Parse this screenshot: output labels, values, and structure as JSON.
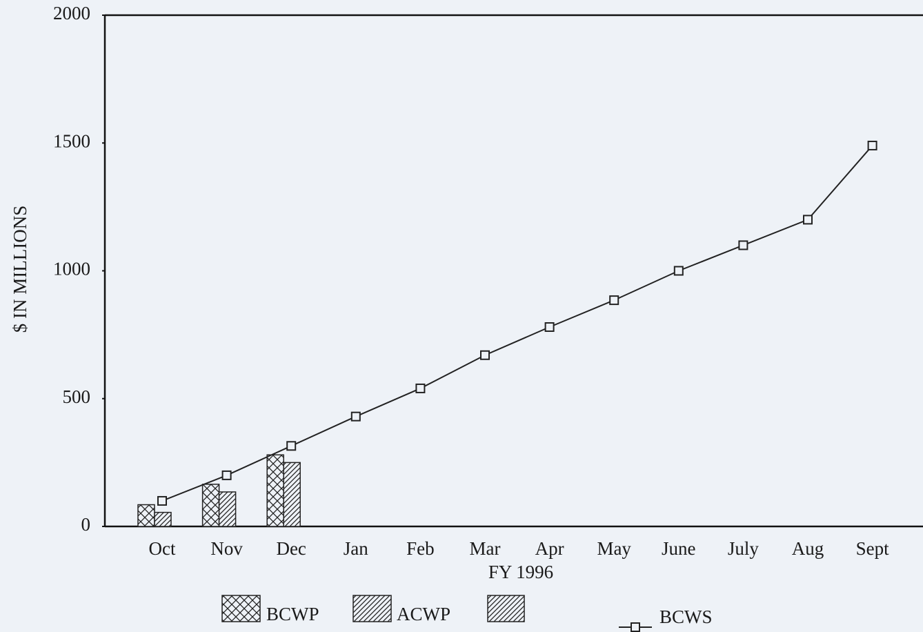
{
  "chart_data": {
    "type": "bar",
    "xlabel": "FY 1996",
    "ylabel": "$ IN MILLIONS",
    "categories": [
      "Oct",
      "Nov",
      "Dec",
      "Jan",
      "Feb",
      "Mar",
      "Apr",
      "May",
      "June",
      "July",
      "Aug",
      "Sept"
    ],
    "series": [
      {
        "name": "BCWP",
        "type": "bar",
        "color": "#222222",
        "values": [
          85,
          165,
          280,
          null,
          null,
          null,
          null,
          null,
          null,
          null,
          null,
          null
        ]
      },
      {
        "name": "ACWP",
        "type": "bar",
        "color": "#222222",
        "values": [
          55,
          135,
          250,
          null,
          null,
          null,
          null,
          null,
          null,
          null,
          null,
          null
        ]
      },
      {
        "name": "BCWS",
        "type": "line",
        "color": "#222222",
        "values": [
          100,
          200,
          315,
          430,
          540,
          670,
          780,
          885,
          1000,
          1100,
          1200,
          1490
        ]
      }
    ],
    "ylim": [
      0,
      2000
    ],
    "yticks": [
      0,
      500,
      1000,
      1500,
      2000
    ],
    "grid": false,
    "legend": "bottom"
  }
}
